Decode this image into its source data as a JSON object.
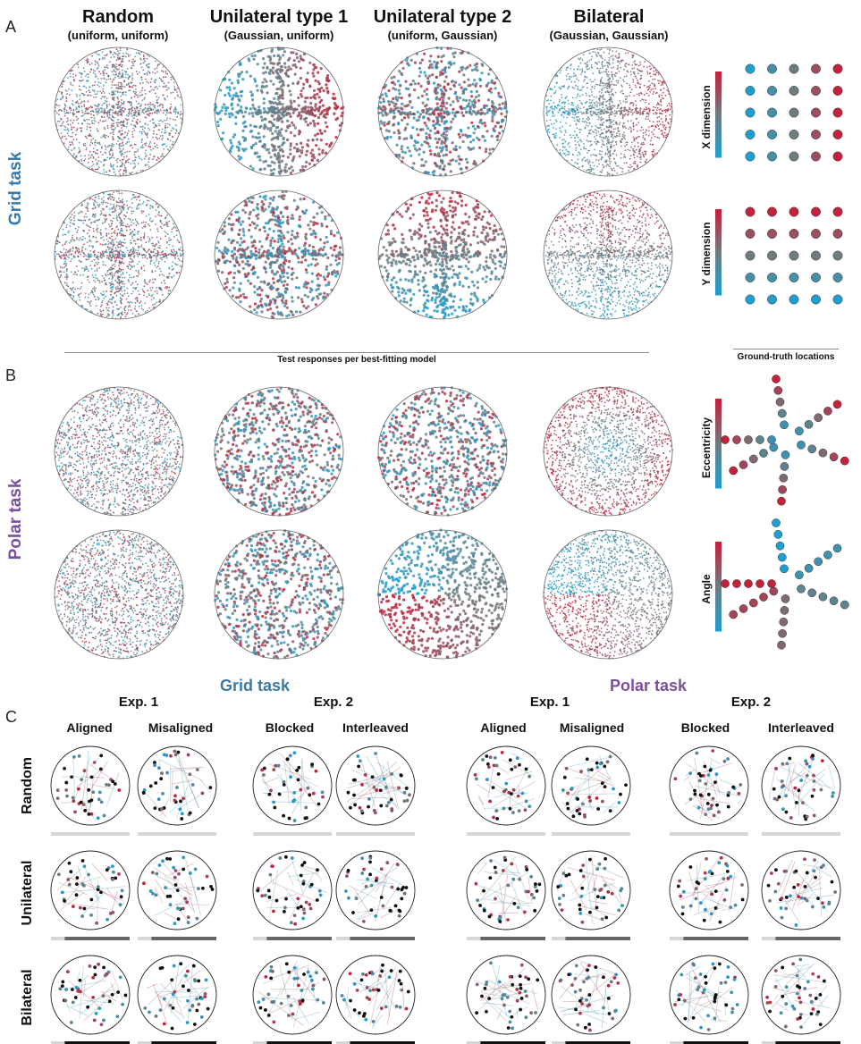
{
  "panels": {
    "a": "A",
    "b": "B",
    "c": "C"
  },
  "section_a": {
    "task_label": "Grid task",
    "columns": [
      {
        "title": "Random",
        "subtitle": "(uniform, uniform)"
      },
      {
        "title": "Unilateral type 1",
        "subtitle": "(Gaussian, uniform)"
      },
      {
        "title": "Unilateral type 2",
        "subtitle": "(uniform, Gaussian)"
      },
      {
        "title": "Bilateral",
        "subtitle": "(Gaussian, Gaussian)"
      }
    ],
    "colorbar_labels": [
      "X dimension",
      "Y dimension"
    ]
  },
  "captions": {
    "test_responses": "Test responses per best-fitting model",
    "ground_truth": "Ground-truth locations"
  },
  "section_b": {
    "task_label": "Polar task",
    "colorbar_labels": [
      "Eccentricity",
      "Angle"
    ]
  },
  "section_c": {
    "grid_title": "Grid task",
    "polar_title": "Polar task",
    "experiments": [
      "Exp. 1",
      "Exp. 2",
      "Exp. 1",
      "Exp. 2"
    ],
    "conditions": [
      "Aligned",
      "Misaligned",
      "Blocked",
      "Interleaved",
      "Aligned",
      "Misaligned",
      "Blocked",
      "Interleaved"
    ],
    "rows": [
      "Random",
      "Unilateral",
      "Bilateral"
    ]
  },
  "colors": {
    "blue": "#1f9fd0",
    "red": "#c4213a",
    "grey": "#6e7c7f",
    "grid_title": "#3a7aa8",
    "polar_title": "#7a4ea0"
  }
}
